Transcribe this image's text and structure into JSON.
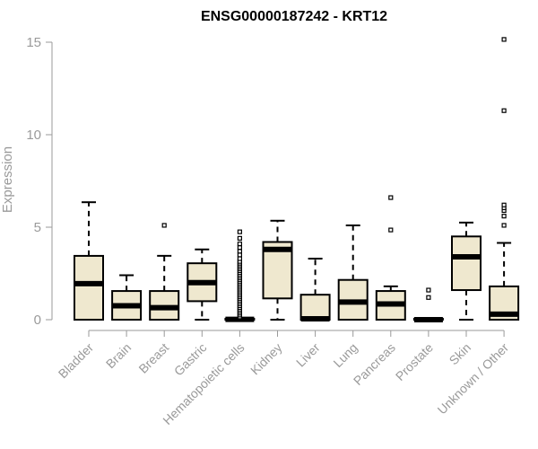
{
  "chart_data": {
    "type": "boxplot",
    "title": "ENSG00000187242 - KRT12",
    "xlabel": "",
    "ylabel": "Expression",
    "ylim": [
      0,
      15
    ],
    "yticks": [
      0,
      5,
      10,
      15
    ],
    "grid": false,
    "box_fill": "#efe8cf",
    "categories": [
      "Bladder",
      "Brain",
      "Breast",
      "Gastric",
      "Hematopoietic cells",
      "Kidney",
      "Liver",
      "Lung",
      "Pancreas",
      "Prostate",
      "Skin",
      "Unknown / Other"
    ],
    "boxes": [
      {
        "min": 0,
        "q1": 0,
        "median": 1.95,
        "q3": 3.45,
        "max": 6.35,
        "outliers": []
      },
      {
        "min": 0,
        "q1": 0,
        "median": 0.75,
        "q3": 1.55,
        "max": 2.4,
        "outliers": []
      },
      {
        "min": 0,
        "q1": 0,
        "median": 0.65,
        "q3": 1.55,
        "max": 3.45,
        "outliers": [
          5.1
        ]
      },
      {
        "min": 0,
        "q1": 1.0,
        "median": 2.0,
        "q3": 3.05,
        "max": 3.8,
        "outliers": []
      },
      {
        "min": 0,
        "q1": 0,
        "median": 0.02,
        "q3": 0.05,
        "max": 0.08,
        "outliers": [
          0.15,
          0.25,
          0.35,
          0.45,
          0.55,
          0.65,
          0.75,
          0.85,
          0.95,
          1.05,
          1.15,
          1.25,
          1.35,
          1.45,
          1.55,
          1.65,
          1.75,
          1.85,
          1.95,
          2.05,
          2.15,
          2.25,
          2.35,
          2.45,
          2.55,
          2.65,
          2.75,
          2.85,
          2.95,
          3.05,
          3.15,
          3.3,
          3.5,
          3.7,
          3.9,
          4.1,
          4.4,
          4.75
        ]
      },
      {
        "min": 0,
        "q1": 1.15,
        "median": 3.8,
        "q3": 4.2,
        "max": 5.35,
        "outliers": []
      },
      {
        "min": 0,
        "q1": 0,
        "median": 0.05,
        "q3": 1.35,
        "max": 3.3,
        "outliers": []
      },
      {
        "min": 0,
        "q1": 0,
        "median": 0.95,
        "q3": 2.15,
        "max": 5.1,
        "outliers": []
      },
      {
        "min": 0,
        "q1": 0,
        "median": 0.85,
        "q3": 1.55,
        "max": 1.8,
        "outliers": [
          4.85,
          6.6
        ]
      },
      {
        "min": 0,
        "q1": 0,
        "median": 0,
        "q3": 0.05,
        "max": 0.1,
        "outliers": [
          1.2,
          1.6
        ]
      },
      {
        "min": 0,
        "q1": 1.6,
        "median": 3.4,
        "q3": 4.5,
        "max": 5.25,
        "outliers": []
      },
      {
        "min": 0,
        "q1": 0,
        "median": 0.3,
        "q3": 1.8,
        "max": 4.15,
        "outliers": [
          5.1,
          5.6,
          5.9,
          6.05,
          6.2,
          11.3,
          15.15
        ]
      }
    ]
  }
}
